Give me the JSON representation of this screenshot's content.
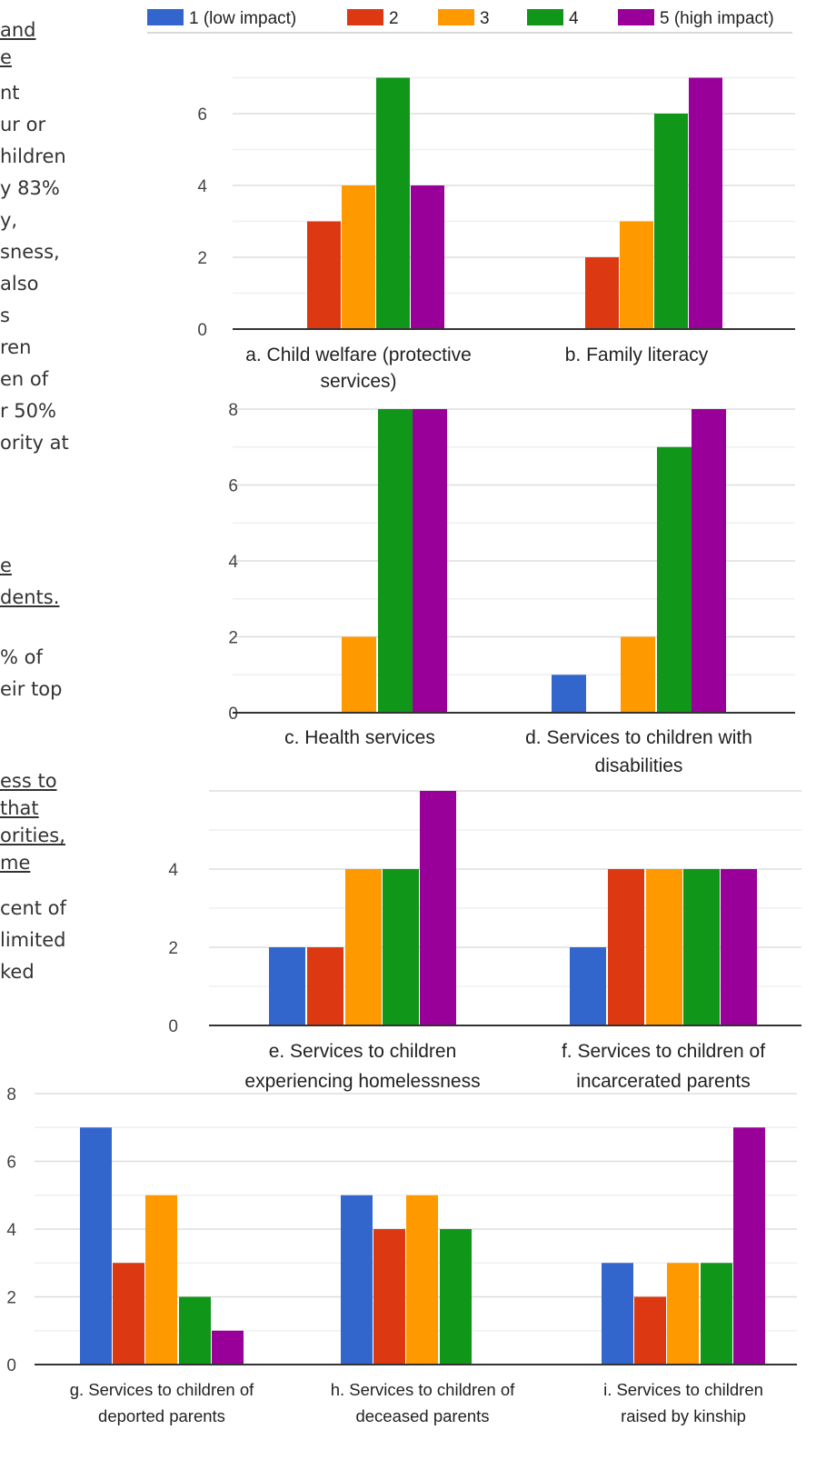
{
  "left_text": [
    "and",
    "e",
    "nt",
    "ur or",
    "hildren",
    "y 83%",
    "y,",
    "sness,",
    "also",
    "s",
    "ren",
    "en of",
    "r 50%",
    "ority at",
    "e",
    "dents.",
    "% of",
    "eir top",
    "ess to",
    "that",
    "orities,",
    "me",
    "cent of",
    "limited",
    "ked"
  ],
  "colors": {
    "s1": "#3366cc",
    "s2": "#dc3912",
    "s3": "#ff9900",
    "s4": "#109618",
    "s5": "#990099",
    "grid": "#e6e6e6",
    "axis": "#333333"
  },
  "legend": [
    "1 (low impact)",
    "2",
    "3",
    "4",
    "5 (high impact)"
  ],
  "chart_data": [
    {
      "type": "bar",
      "categories": [
        [
          "a. Child welfare (protective",
          "services)"
        ],
        [
          "b. Family literacy"
        ]
      ],
      "series": [
        {
          "name": "1 (low impact)",
          "values": [
            0,
            0
          ]
        },
        {
          "name": "2",
          "values": [
            3,
            2
          ]
        },
        {
          "name": "3",
          "values": [
            4,
            3
          ]
        },
        {
          "name": "4",
          "values": [
            7,
            6
          ]
        },
        {
          "name": "5 (high impact)",
          "values": [
            4,
            7
          ]
        }
      ],
      "yticks": [
        "0",
        "2",
        "4",
        "6"
      ],
      "ylim": [
        0,
        7
      ]
    },
    {
      "type": "bar",
      "categories": [
        [
          "c. Health services"
        ],
        [
          "d. Services to children with",
          "disabilities"
        ]
      ],
      "series": [
        {
          "name": "1 (low impact)",
          "values": [
            0,
            1
          ]
        },
        {
          "name": "2",
          "values": [
            0,
            0
          ]
        },
        {
          "name": "3",
          "values": [
            2,
            2
          ]
        },
        {
          "name": "4",
          "values": [
            8,
            7
          ]
        },
        {
          "name": "5 (high impact)",
          "values": [
            8,
            8
          ]
        }
      ],
      "yticks": [
        "0",
        "2",
        "4",
        "6",
        "8"
      ],
      "ylim": [
        0,
        8
      ]
    },
    {
      "type": "bar",
      "categories": [
        [
          "e. Services to children",
          "experiencing homelessness"
        ],
        [
          "f. Services to children of",
          "incarcerated parents"
        ]
      ],
      "series": [
        {
          "name": "1 (low impact)",
          "values": [
            2,
            2
          ]
        },
        {
          "name": "2",
          "values": [
            2,
            4
          ]
        },
        {
          "name": "3",
          "values": [
            4,
            4
          ]
        },
        {
          "name": "4",
          "values": [
            4,
            4
          ]
        },
        {
          "name": "5 (high impact)",
          "values": [
            6,
            4
          ]
        }
      ],
      "yticks": [
        "0",
        "2",
        "4"
      ],
      "ylim": [
        0,
        6
      ]
    },
    {
      "type": "bar",
      "categories": [
        [
          "g. Services to children of",
          "deported parents"
        ],
        [
          "h. Services to children of",
          "deceased parents"
        ],
        [
          "i. Services to children",
          "raised by kinship"
        ]
      ],
      "series": [
        {
          "name": "1 (low impact)",
          "values": [
            7,
            5,
            3
          ]
        },
        {
          "name": "2",
          "values": [
            3,
            4,
            2
          ]
        },
        {
          "name": "3",
          "values": [
            5,
            5,
            3
          ]
        },
        {
          "name": "4",
          "values": [
            2,
            4,
            3
          ]
        },
        {
          "name": "5 (high impact)",
          "values": [
            1,
            0,
            7
          ]
        }
      ],
      "yticks": [
        "0",
        "2",
        "4",
        "6",
        "8"
      ],
      "ylim": [
        0,
        8
      ]
    }
  ]
}
